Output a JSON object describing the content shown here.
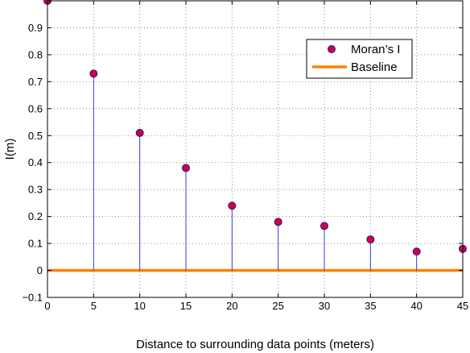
{
  "chart_data": {
    "type": "scatter",
    "plot_style": "stem",
    "xlabel": "Distance to surrounding data points (meters)",
    "ylabel": "I(m)",
    "xlim": [
      0,
      45
    ],
    "ylim": [
      -0.1,
      1.0
    ],
    "xticks": [
      0,
      5,
      10,
      15,
      20,
      25,
      30,
      35,
      40,
      45
    ],
    "xtick_labels": [
      "0",
      "5",
      "10",
      "15",
      "20",
      "25",
      "30",
      "35",
      "40",
      "45"
    ],
    "yticks": [
      -0.1,
      0,
      0.1,
      0.2,
      0.3,
      0.4,
      0.5,
      0.6,
      0.7,
      0.8,
      0.9
    ],
    "ytick_labels": [
      "−0.1",
      "0",
      "0.1",
      "0.2",
      "0.3",
      "0.4",
      "0.5",
      "0.6",
      "0.7",
      "0.8",
      "0.9"
    ],
    "grid": true,
    "legend_position": "top-right",
    "series": [
      {
        "name": "Moran’s I",
        "x": [
          0,
          5,
          10,
          15,
          20,
          25,
          30,
          35,
          40,
          45
        ],
        "y": [
          1.0,
          0.73,
          0.51,
          0.38,
          0.24,
          0.18,
          0.165,
          0.115,
          0.07,
          0.08
        ],
        "marker_color": "#d7003a",
        "marker_edge_color": "#1a1aa8",
        "stem_color": "#3a3ae0"
      },
      {
        "name": "Baseline",
        "x": [
          0,
          45
        ],
        "y": [
          0,
          0
        ],
        "color": "#ff8000"
      }
    ]
  }
}
